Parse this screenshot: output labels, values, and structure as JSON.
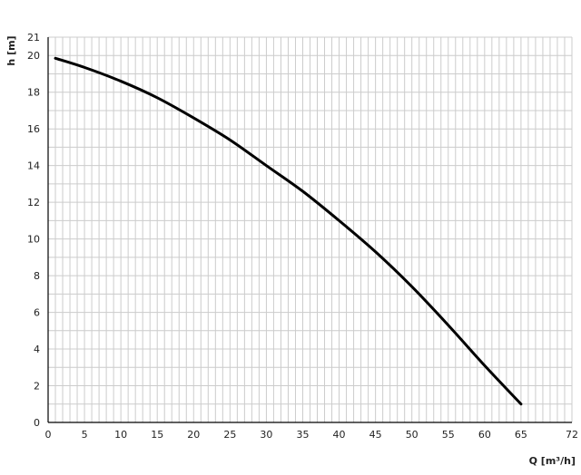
{
  "chart_data": {
    "type": "line",
    "title": "",
    "xlabel": "Q [m³/h]",
    "ylabel": "h [m]",
    "xlim": [
      0,
      72
    ],
    "ylim": [
      0,
      21
    ],
    "x_ticks": [
      0,
      5,
      10,
      15,
      20,
      25,
      30,
      35,
      40,
      45,
      50,
      55,
      60,
      65,
      72
    ],
    "y_ticks": [
      0,
      2,
      4,
      6,
      8,
      10,
      12,
      14,
      16,
      18,
      20,
      21
    ],
    "grid": true,
    "line_color": "#000000",
    "grid_color": "#cccccc",
    "series": [
      {
        "x": [
          1,
          5,
          10,
          15,
          20,
          25,
          30,
          35,
          40,
          45,
          50,
          55,
          60,
          65
        ],
        "y": [
          19.85,
          19.35,
          18.6,
          17.7,
          16.6,
          15.4,
          14.0,
          12.6,
          11.0,
          9.3,
          7.4,
          5.3,
          3.1,
          1.0
        ]
      }
    ]
  }
}
